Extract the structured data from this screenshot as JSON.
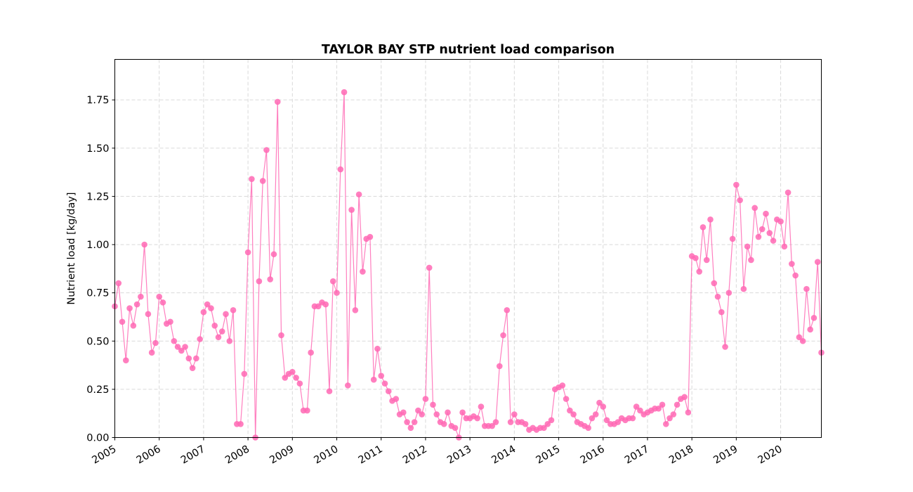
{
  "chart_data": {
    "type": "line",
    "title": "TAYLOR BAY STP nutrient load comparison",
    "xlabel": "",
    "ylabel": "Nutrient load [kg/day]",
    "xlim": [
      "2005-01",
      "2020-12"
    ],
    "ylim": [
      0,
      1.96
    ],
    "grid": true,
    "marker": "circle",
    "y_ticks": [
      "0.00",
      "0.25",
      "0.50",
      "0.75",
      "1.00",
      "1.25",
      "1.50",
      "1.75"
    ],
    "x_ticks": [
      "2005",
      "2006",
      "2007",
      "2008",
      "2009",
      "2010",
      "2011",
      "2012",
      "2013",
      "2014",
      "2015",
      "2016",
      "2017",
      "2018",
      "2019",
      "2020"
    ],
    "colors": {
      "series": "#ff69b4",
      "grid": "#d9d9d9",
      "axis": "#000000"
    },
    "series": [
      {
        "x_start": "2005-01",
        "frequency": "monthly",
        "values": [
          0.68,
          0.8,
          0.6,
          0.4,
          0.67,
          0.58,
          0.69,
          0.73,
          1.0,
          0.64,
          0.44,
          0.49,
          0.73,
          0.7,
          0.59,
          0.6,
          0.5,
          0.47,
          0.45,
          0.47,
          0.41,
          0.36,
          0.41,
          0.51,
          0.65,
          0.69,
          0.67,
          0.58,
          0.52,
          0.55,
          0.64,
          0.5,
          0.66,
          0.07,
          0.07,
          0.33,
          0.96,
          1.34,
          0.0,
          0.81,
          1.33,
          1.49,
          0.82,
          0.95,
          1.74,
          0.53,
          0.31,
          0.33,
          0.34,
          0.31,
          0.28,
          0.14,
          0.14,
          0.44,
          0.68,
          0.68,
          0.7,
          0.69,
          0.24,
          0.81,
          0.75,
          1.39,
          1.79,
          0.27,
          1.18,
          0.66,
          1.26,
          0.86,
          1.03,
          1.04,
          0.3,
          0.46,
          0.32,
          0.28,
          0.24,
          0.19,
          0.2,
          0.12,
          0.13,
          0.08,
          0.05,
          0.08,
          0.14,
          0.12,
          0.2,
          0.88,
          0.17,
          0.12,
          0.08,
          0.07,
          0.13,
          0.06,
          0.05,
          0.0,
          0.13,
          0.1,
          0.1,
          0.11,
          0.1,
          0.16,
          0.06,
          0.06,
          0.06,
          0.08,
          0.37,
          0.53,
          0.66,
          0.08,
          0.12,
          0.08,
          0.08,
          0.07,
          0.04,
          0.05,
          0.04,
          0.05,
          0.05,
          0.07,
          0.09,
          0.25,
          0.26,
          0.27,
          0.2,
          0.14,
          0.12,
          0.08,
          0.07,
          0.06,
          0.05,
          0.1,
          0.12,
          0.18,
          0.16,
          0.09,
          0.07,
          0.07,
          0.08,
          0.1,
          0.09,
          0.1,
          0.1,
          0.16,
          0.14,
          0.12,
          0.13,
          0.14,
          0.15,
          0.15,
          0.17,
          0.07,
          0.1,
          0.12,
          0.17,
          0.2,
          0.21,
          0.13,
          0.94,
          0.93,
          0.86,
          1.09,
          0.92,
          1.13,
          0.8,
          0.73,
          0.65,
          0.47,
          0.75,
          1.03,
          1.31,
          1.23,
          0.77,
          0.99,
          0.92,
          1.19,
          1.04,
          1.08,
          1.16,
          1.06,
          1.02,
          1.13,
          1.12,
          0.99,
          1.27,
          0.9,
          0.84,
          0.52,
          0.5,
          0.77,
          0.56,
          0.62,
          0.91,
          0.44
        ]
      }
    ]
  }
}
